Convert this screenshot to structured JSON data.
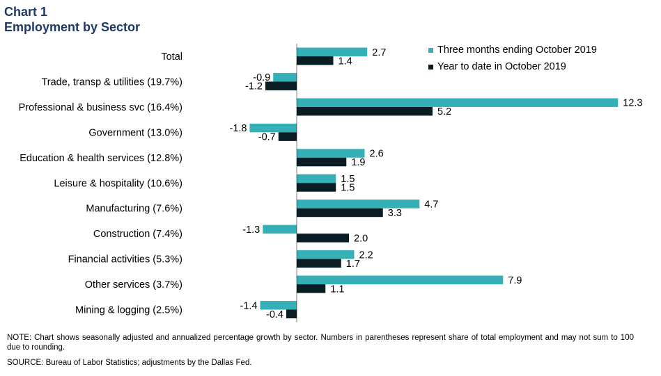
{
  "chart_data": {
    "type": "bar",
    "orientation": "horizontal",
    "title": "Chart 1",
    "subtitle": "Employment by Sector",
    "categories": [
      "Total",
      "Trade, transp & utilities (19.7%)",
      "Professional & business svc (16.4%)",
      "Government (13.0%)",
      "Education & health services (12.8%)",
      "Leisure & hospitality (10.6%)",
      "Manufacturing (7.6%)",
      "Construction (7.4%)",
      "Financial activities (5.3%)",
      "Other services (3.7%)",
      "Mining & logging (2.5%)"
    ],
    "series": [
      {
        "name": "Three months ending October 2019",
        "color": "#35b0b7",
        "values": [
          2.7,
          -0.9,
          12.3,
          -1.8,
          2.6,
          1.5,
          4.7,
          -1.3,
          2.2,
          7.9,
          -1.4
        ],
        "labels": [
          "2.7",
          "-0.9",
          "12.3",
          "-1.8",
          "2.6",
          "1.5",
          "4.7",
          "-1.3",
          "2.2",
          "7.9",
          "-1.4"
        ]
      },
      {
        "name": "Year to date in October 2019",
        "color": "#0b1d24",
        "values": [
          1.4,
          -1.2,
          5.2,
          -0.7,
          1.9,
          1.5,
          3.3,
          2.0,
          1.7,
          1.1,
          -0.4
        ],
        "labels": [
          "1.4",
          "-1.2",
          "5.2",
          "-0.7",
          "1.9",
          "1.5",
          "3.3",
          "2.0",
          "1.7",
          "1.1",
          "-0.4"
        ]
      }
    ],
    "xlim": [
      -2,
      12.5
    ],
    "grid": false,
    "legend_position": "top-right"
  },
  "notes": {
    "note": "NOTE: Chart shows seasonally adjusted and annualized percentage growth by sector. Numbers in parentheses represent share of total employment and may not sum to 100 due to rounding.",
    "source": "SOURCE: Bureau of Labor Statistics; adjustments by the Dallas Fed."
  }
}
